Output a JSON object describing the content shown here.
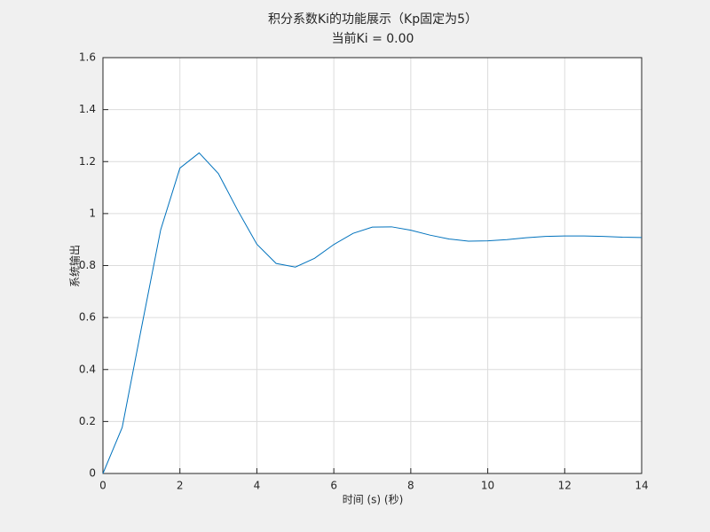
{
  "chart_data": {
    "type": "line",
    "title": "积分系数Ki的功能展示（Kp固定为5）",
    "subtitle": "当前Ki = 0.00",
    "xlabel": "时间 (s) (秒)",
    "ylabel": "系统输出",
    "x": [
      0,
      0.5,
      1,
      1.5,
      2,
      2.5,
      3,
      3.5,
      4,
      4.5,
      5,
      5.5,
      6,
      6.5,
      7,
      7.5,
      8,
      8.5,
      9,
      9.5,
      10,
      10.5,
      11,
      11.5,
      12,
      12.5,
      13,
      13.5,
      14
    ],
    "series": [
      {
        "color": "#0072bd",
        "values": [
          0,
          0.177,
          0.56,
          0.9375,
          1.175,
          1.2335,
          1.154,
          1.013,
          0.882,
          0.808,
          0.794,
          0.828,
          0.881,
          0.924,
          0.948,
          0.949,
          0.936,
          0.917,
          0.902,
          0.894,
          0.895,
          0.9,
          0.907,
          0.912,
          0.914,
          0.914,
          0.912,
          0.909,
          0.908
        ]
      }
    ],
    "xlim": [
      0,
      14
    ],
    "ylim": [
      0,
      1.6
    ],
    "xticks": [
      0,
      2,
      4,
      6,
      8,
      10,
      12,
      14
    ],
    "yticks": [
      0,
      0.2,
      0.4,
      0.6,
      0.8,
      1,
      1.2,
      1.4,
      1.6
    ],
    "grid": true
  }
}
